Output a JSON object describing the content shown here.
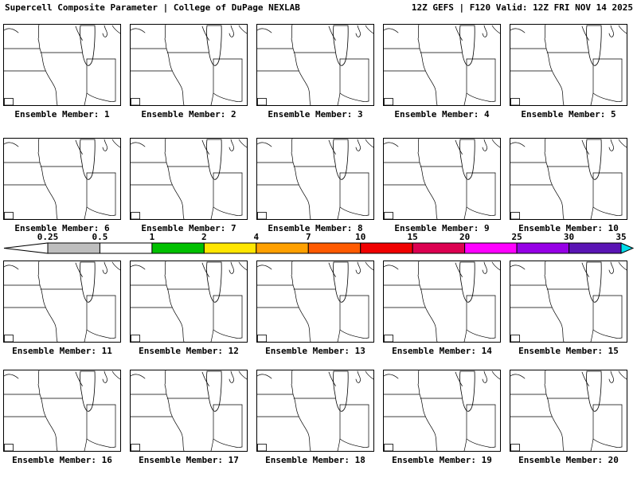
{
  "header": {
    "left": "Supercell Composite Parameter | College of DuPage NEXLAB",
    "right": "12Z GEFS | F120 Valid: 12Z FRI NOV 14 2025"
  },
  "panels": {
    "label_prefix": "Ensemble Member:",
    "rows": [
      [
        1,
        2,
        3,
        4,
        5
      ],
      [
        6,
        7,
        8,
        9,
        10
      ],
      [
        11,
        12,
        13,
        14,
        15
      ],
      [
        16,
        17,
        18,
        19,
        20
      ]
    ],
    "map_name": "upper-midwest-base-map"
  },
  "colorbar": {
    "ticks": [
      "0.25",
      "0.5",
      "1",
      "2",
      "4",
      "7",
      "10",
      "15",
      "20",
      "25",
      "30",
      "35"
    ],
    "segment_colors": [
      "#bebebe",
      "#ffffff",
      "#00c000",
      "#ffe600",
      "#ffa000",
      "#ff5a00",
      "#f00000",
      "#dc0050",
      "#ff00ff",
      "#9600e6",
      "#5a14b4"
    ],
    "under_arrow_color": "#ffffff",
    "over_arrow_color": "#00dcea",
    "outline_color": "#000000"
  }
}
